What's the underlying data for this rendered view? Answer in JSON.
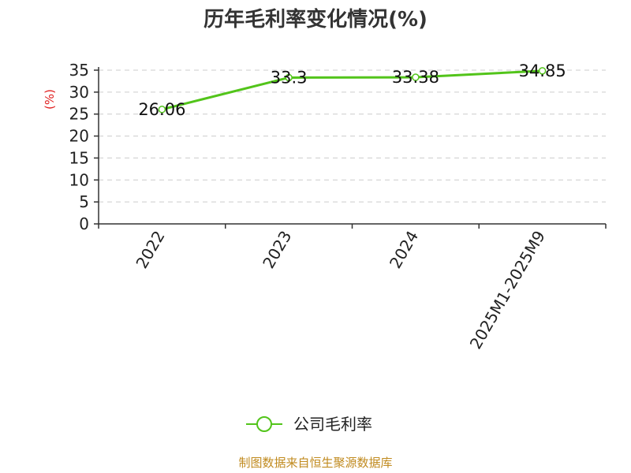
{
  "chart_data": {
    "type": "line",
    "title": "历年毛利率变化情况(%)",
    "ylabel": "(%)",
    "categories": [
      "2022",
      "2023",
      "2024",
      "2025M1-2025M9"
    ],
    "series": [
      {
        "name": "公司毛利率",
        "values": [
          26.06,
          33.3,
          33.38,
          34.85
        ],
        "labels": [
          "26.06",
          "33.3",
          "33.38",
          "34.85"
        ]
      }
    ],
    "ylim": [
      0,
      35
    ],
    "yticks": [
      "0",
      "5",
      "10",
      "15",
      "20",
      "25",
      "30",
      "35"
    ],
    "ytick_values": [
      0,
      5,
      10,
      15,
      20,
      25,
      30,
      35
    ],
    "grid": true,
    "legend": "bottom-center",
    "line_color": "#52c41a"
  },
  "source": "制图数据来自恒生聚源数据库"
}
